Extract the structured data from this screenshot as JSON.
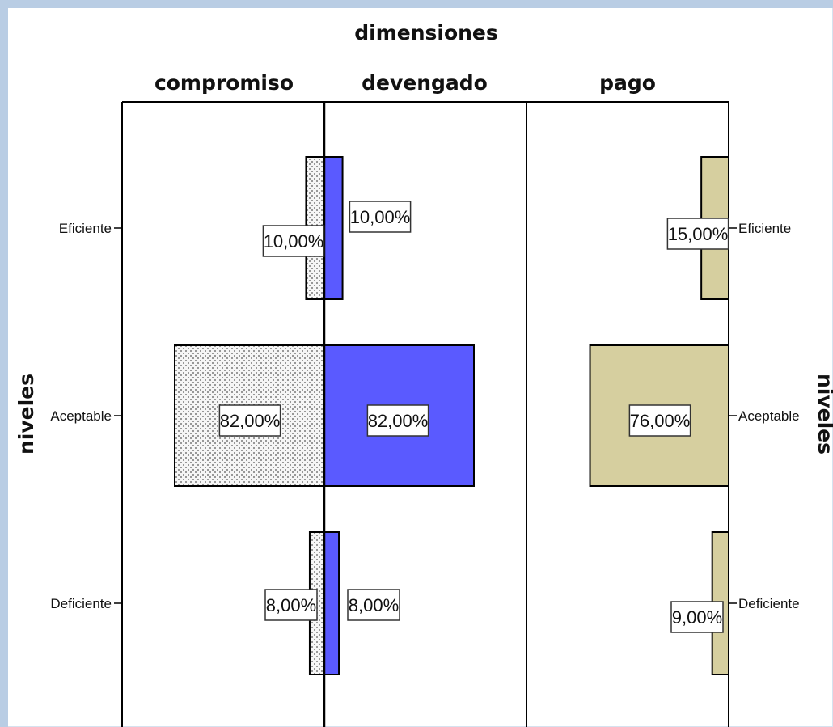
{
  "chart_data": {
    "type": "bar",
    "orientation": "horizontal-population-pyramid",
    "title": "dimensiones",
    "ylabel": "niveles",
    "categories": [
      "Eficiente",
      "Aceptable",
      "Deficiente"
    ],
    "series": [
      {
        "name": "compromiso",
        "values": [
          10,
          82,
          8
        ],
        "labels": [
          "10,00%",
          "82,00%",
          "8,00%"
        ],
        "color": "#f4f4f4",
        "pattern": "dotted",
        "direction": "left"
      },
      {
        "name": "devengado",
        "values": [
          10,
          82,
          8
        ],
        "labels": [
          "10,00%",
          "82,00%",
          "8,00%"
        ],
        "color": "#5a5aff",
        "direction": "right"
      },
      {
        "name": "pago",
        "values": [
          15,
          76,
          9
        ],
        "labels": [
          "15,00%",
          "76,00%",
          "9,00%"
        ],
        "color": "#d6cf9f",
        "direction": "left"
      }
    ],
    "grid": false,
    "legend": "none"
  }
}
